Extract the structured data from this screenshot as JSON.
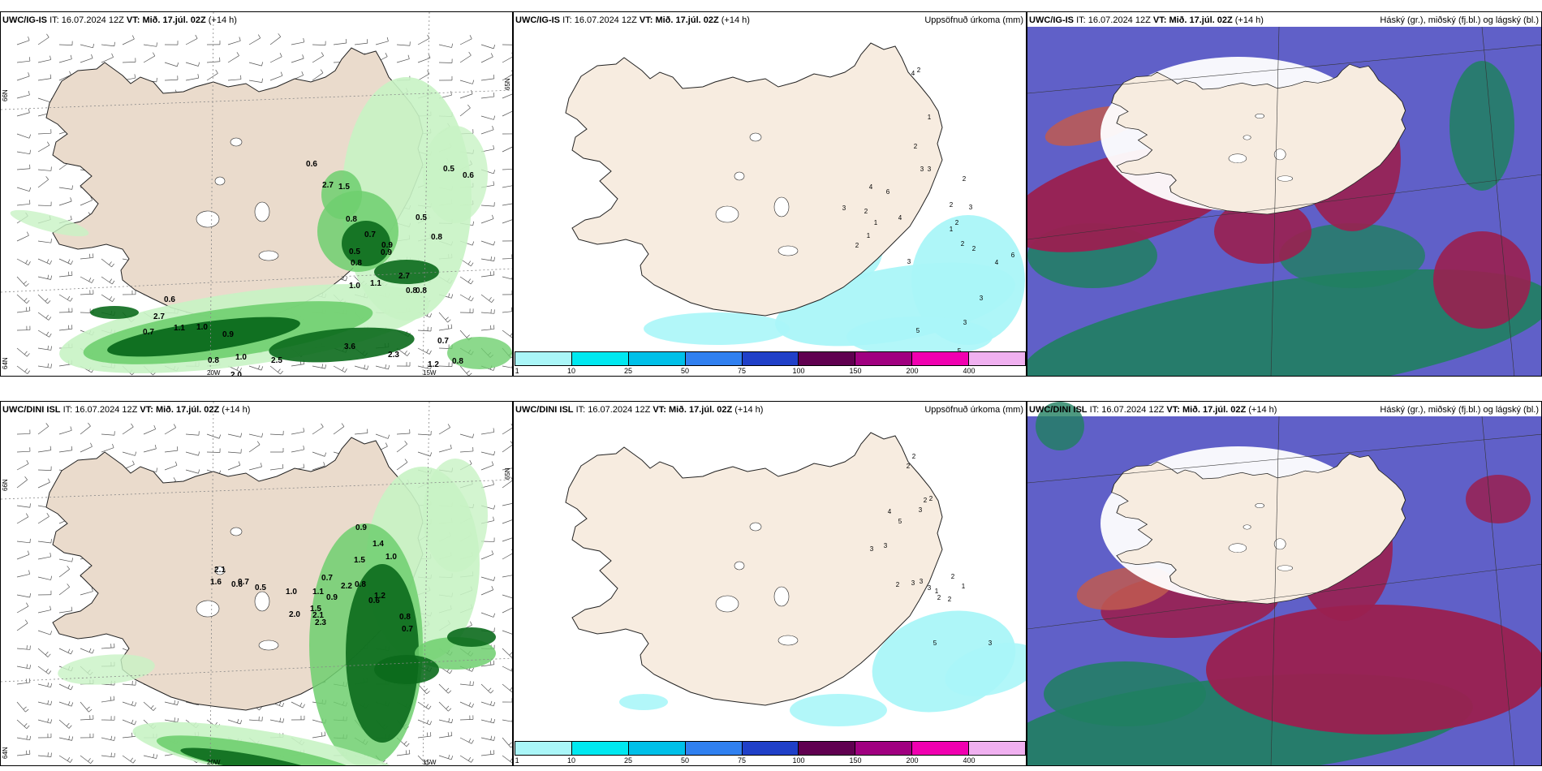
{
  "row_top": {
    "winds": {
      "title_model": "UWC/IG-IS",
      "title_it_label": "IT:",
      "title_it": "16.07.2024 12Z",
      "title_vt_label": "VT:",
      "title_vt": "Mið. 17.júl. 02Z",
      "title_lead": "(+14 h)",
      "lat_labels": [
        "66N",
        "64N",
        "65N"
      ],
      "lon_labels": [
        "20W",
        "15W"
      ],
      "values": [
        "0.6",
        "2.7",
        "1.5",
        "0.5",
        "0.6",
        "0.5",
        "0.8",
        "0.8",
        "0.7",
        "0.9",
        "0.5",
        "0.9",
        "0.8",
        "1.0",
        "1.1",
        "2.7",
        "0.8",
        "0.8",
        "0.6",
        "2.7",
        "0.7",
        "1.1",
        "1.0",
        "0.9",
        "3.6",
        "2.3",
        "0.8",
        "1.0",
        "2.0",
        "2.5",
        "1.2",
        "0.8",
        "0.7"
      ]
    },
    "precip": {
      "title_model": "UWC/IG-IS",
      "title_it_label": "IT:",
      "title_it": "16.07.2024 12Z",
      "title_vt_label": "VT:",
      "title_vt": "Mið. 17.júl. 02Z",
      "title_lead": "(+14 h)",
      "subtitle": "Uppsöfnuð úrkoma (mm)",
      "colorbar_labels": [
        "1",
        "10",
        "25",
        "50",
        "75",
        "100",
        "150",
        "200",
        "400"
      ],
      "values": [
        "2",
        "4",
        "1",
        "2",
        "3",
        "3",
        "2",
        "2",
        "3",
        "2",
        "1",
        "2",
        "2",
        "3",
        "4",
        "6",
        "3",
        "3",
        "2",
        "3",
        "4",
        "5",
        "5",
        "4",
        "1",
        "2",
        "1",
        "2",
        "3",
        "4",
        "6"
      ]
    },
    "clouds": {
      "title_model": "UWC/IG-IS",
      "title_it_label": "IT:",
      "title_it": "16.07.2024 12Z",
      "title_vt_label": "VT:",
      "title_vt": "Mið. 17.júl. 02Z",
      "title_lead": "(+14 h)",
      "subtitle": "Háský (gr.), miðský (fj.bl.) og lágský (bl.)"
    }
  },
  "row_bottom": {
    "winds": {
      "title_model": "UWC/DINI ISL",
      "title_it_label": "IT:",
      "title_it": "16.07.2024 12Z",
      "title_vt_label": "VT:",
      "title_vt": "Mið. 17.júl. 02Z",
      "title_lead": "(+14 h)",
      "lat_labels": [
        "66N",
        "64N",
        "65N"
      ],
      "lon_labels": [
        "20W",
        "15W"
      ],
      "values": [
        "0.9",
        "1.4",
        "1.0",
        "1.5",
        "0.7",
        "2.2",
        "0.8",
        "0.6",
        "0.8",
        "0.7",
        "1.2",
        "2.1",
        "1.6",
        "0.6",
        "0.7",
        "0.5",
        "1.0",
        "1.1",
        "0.9",
        "1.5",
        "2.0",
        "2.1",
        "2.3"
      ]
    },
    "precip": {
      "title_model": "UWC/DINI ISL",
      "title_it_label": "IT:",
      "title_it": "16.07.2024 12Z",
      "title_vt_label": "VT:",
      "title_vt": "Mið. 17.júl. 02Z",
      "title_lead": "(+14 h)",
      "subtitle": "Uppsöfnuð úrkoma (mm)",
      "colorbar_labels": [
        "1",
        "10",
        "25",
        "50",
        "75",
        "100",
        "150",
        "200",
        "400"
      ],
      "values": [
        "2",
        "2",
        "2",
        "2",
        "3",
        "4",
        "5",
        "3",
        "3",
        "2",
        "3",
        "3",
        "3",
        "2",
        "1",
        "1",
        "2",
        "2",
        "5",
        "3"
      ]
    },
    "clouds": {
      "title_model": "UWC/DINI ISL",
      "title_it_label": "IT:",
      "title_it": "16.07.2024 12Z",
      "title_vt_label": "VT:",
      "title_vt": "Mið. 17.júl. 02Z",
      "title_lead": "(+14 h)",
      "subtitle": "Háský (gr.), miðský (fj.bl.) og lágský (bl.)"
    }
  },
  "colors": {
    "land": "#f7ece0",
    "land_dim": "#eadbcc",
    "precip_light": "#c8f3c4",
    "precip_mid": "#6fcf6f",
    "precip_dark": "#0b6a1c",
    "colorbar": [
      "#aaf6f8",
      "#00e8f0",
      "#00c0e8",
      "#3080f0",
      "#2040c8",
      "#600050",
      "#a00080",
      "#f000b0",
      "#f0b0f0"
    ],
    "cloud_high": "#6060c8",
    "cloud_mid": "#9a2050",
    "cloud_low": "#208060"
  }
}
